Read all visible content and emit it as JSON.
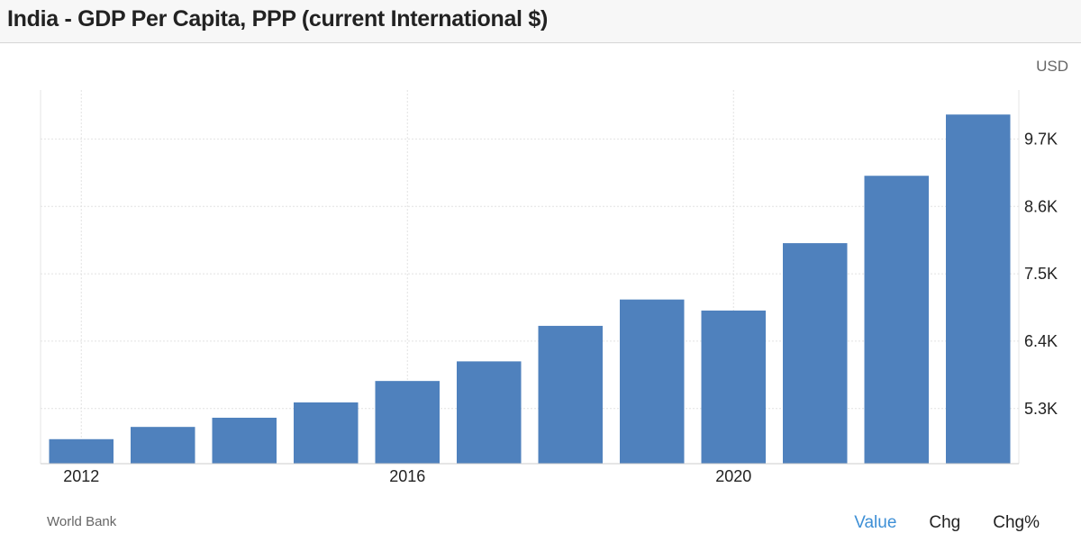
{
  "header": {
    "title": "India - GDP Per Capita, PPP (current International $)"
  },
  "unit_label": "USD",
  "source_label": "World Bank",
  "toggles": [
    {
      "label": "Value",
      "active": true
    },
    {
      "label": "Chg",
      "active": false
    },
    {
      "label": "Chg%",
      "active": false
    }
  ],
  "colors": {
    "bar": "#4f81bd",
    "active_toggle": "#3d8fd6",
    "grid": "#e2e2e2"
  },
  "chart_data": {
    "type": "bar",
    "title": "India - GDP Per Capita, PPP (current International $)",
    "ylabel": "USD",
    "xlabel": "",
    "categories": [
      "2012",
      "2013",
      "2014",
      "2015",
      "2016",
      "2017",
      "2018",
      "2019",
      "2020",
      "2021",
      "2022",
      "2023"
    ],
    "x_tick_labels": [
      "2012",
      "2016",
      "2020"
    ],
    "values": [
      4800,
      5000,
      5150,
      5400,
      5750,
      6070,
      6650,
      7080,
      6900,
      8000,
      9100,
      10100
    ],
    "y_ticks": [
      {
        "value": 5300,
        "label": "5.3K"
      },
      {
        "value": 6400,
        "label": "6.4K"
      },
      {
        "value": 7500,
        "label": "7.5K"
      },
      {
        "value": 8600,
        "label": "8.6K"
      },
      {
        "value": 9700,
        "label": "9.7K"
      }
    ],
    "ylim": [
      4400,
      10500
    ],
    "grid": true,
    "y_axis_position": "right"
  }
}
